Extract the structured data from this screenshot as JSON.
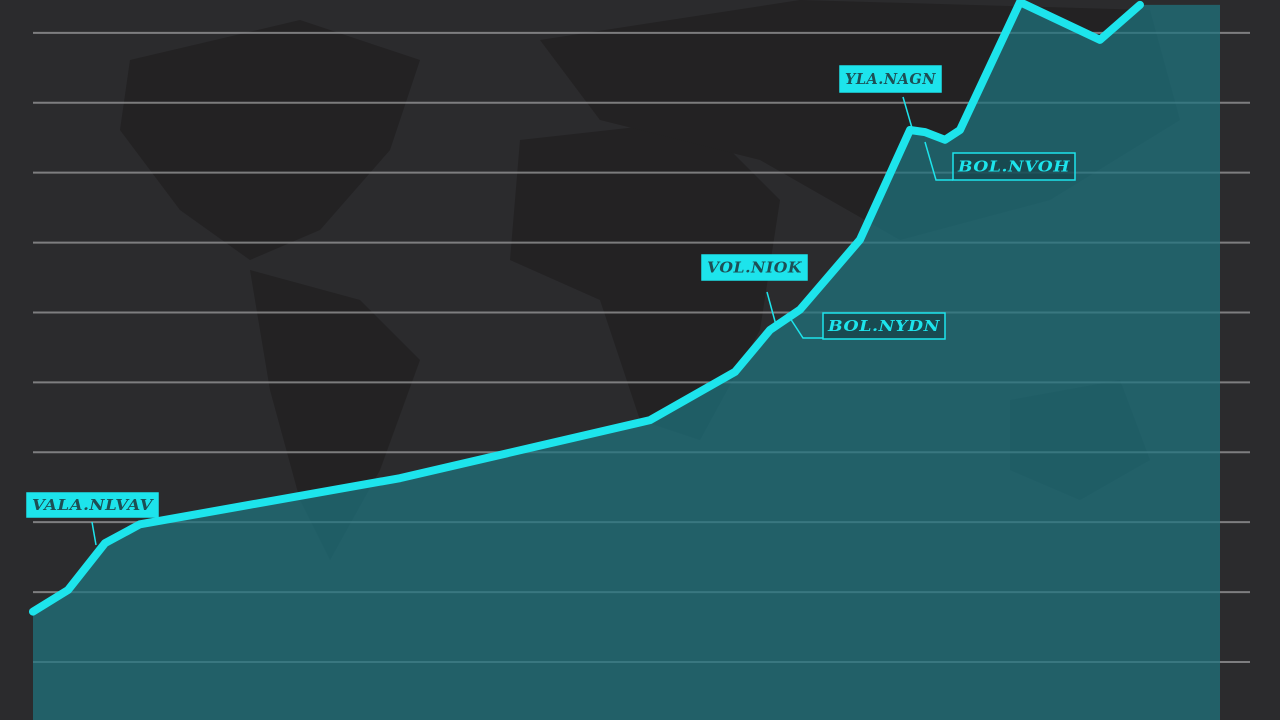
{
  "chart_data": {
    "type": "area-line",
    "x": [
      0,
      2.88,
      5.92,
      8.79,
      30.16,
      50.7,
      57.68,
      60.56,
      63.02,
      67.95,
      72.06,
      73.3,
      74.94,
      76.17,
      81.1,
      87.67,
      90.96
    ],
    "values": [
      1.72,
      2.03,
      2.7,
      2.97,
      3.63,
      4.46,
      5.15,
      5.75,
      6.04,
      7.04,
      8.61,
      8.58,
      8.47,
      8.61,
      10.44,
      9.9,
      10.4
    ],
    "xlim": [
      0,
      100
    ],
    "ylim": [
      0.17,
      10.47
    ],
    "yticks": [
      1,
      2,
      3,
      4,
      5,
      6,
      7,
      8,
      9,
      10
    ],
    "grid": true,
    "color": "#1de4ec",
    "area_color": "#1f7580",
    "annotations": [
      "VALA.NLVAV",
      "YLA.NAGN",
      "BOL.NVOH",
      "VOL.NIOK",
      "BOL.NYDN"
    ]
  }
}
